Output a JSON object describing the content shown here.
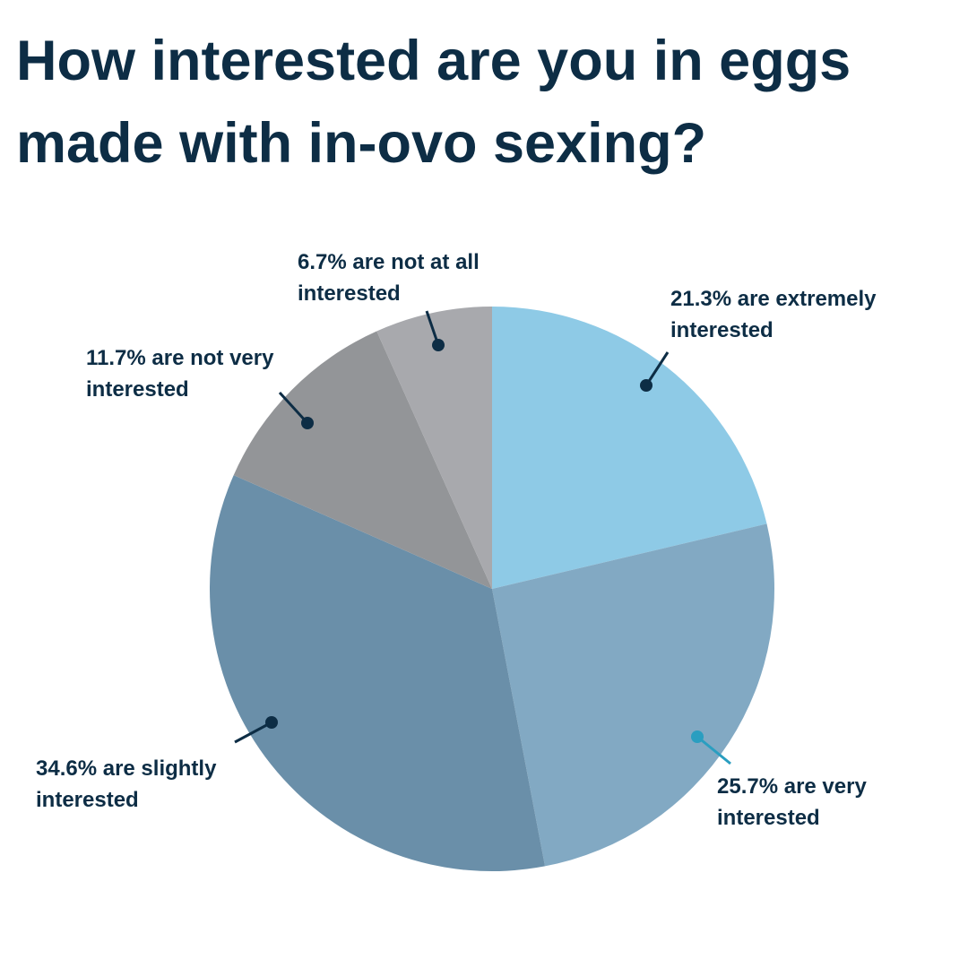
{
  "chart_data": {
    "type": "pie",
    "title": "How interested are you in eggs made with in-ovo sexing?",
    "categories": [
      "extremely interested",
      "very interested",
      "slightly interested",
      "not very interested",
      "not at all interested"
    ],
    "values": [
      21.3,
      25.7,
      34.6,
      11.7,
      6.7
    ],
    "value_labels": [
      "21.3% are extremely interested",
      "25.7% are very interested",
      "34.6% are slightly interested",
      "11.7% are not very interested",
      "6.7% are not at all interested"
    ],
    "colors": [
      "#8ecae6",
      "#82a9c3",
      "#6a8fa9",
      "#939598",
      "#a8a9ad"
    ]
  }
}
